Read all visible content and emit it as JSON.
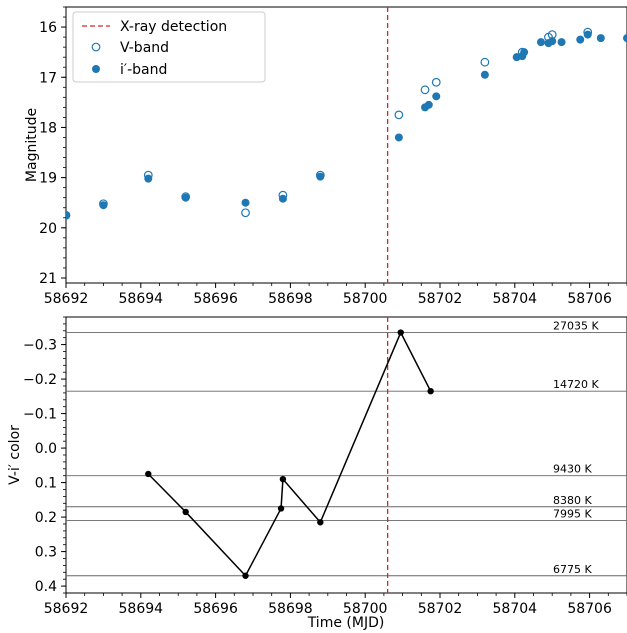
{
  "chart_data": [
    {
      "type": "scatter",
      "title": "",
      "xlabel": "",
      "ylabel": "Magnitude",
      "xlim": [
        58692,
        58707
      ],
      "ylim": [
        21.1,
        15.6
      ],
      "y_inverted": true,
      "xticks": [
        58692,
        58694,
        58696,
        58698,
        58700,
        58702,
        58704,
        58706
      ],
      "yticks": [
        16,
        17,
        18,
        19,
        20,
        21
      ],
      "legend": {
        "placement": "upper-left",
        "entries": [
          "X-ray detection",
          "V-band",
          "i′-band"
        ]
      },
      "vline": {
        "x": 58700.6,
        "label": "X-ray detection",
        "color": "#d62728",
        "style": "dashed"
      },
      "series": [
        {
          "name": "V-band",
          "marker": "open-circle",
          "color": "#1f77b4",
          "points": [
            [
              58692,
              19.75
            ],
            [
              58693,
              19.52
            ],
            [
              58694.2,
              18.95
            ],
            [
              58695.2,
              19.38
            ],
            [
              58696.8,
              19.7
            ],
            [
              58697.8,
              19.35
            ],
            [
              58698.8,
              18.95
            ],
            [
              58700.9,
              17.75
            ],
            [
              58701.6,
              17.25
            ],
            [
              58701.9,
              17.1
            ],
            [
              58703.2,
              16.7
            ],
            [
              58704.2,
              16.5
            ],
            [
              58704.9,
              16.2
            ],
            [
              58705,
              16.15
            ],
            [
              58705.95,
              16.1
            ]
          ]
        },
        {
          "name": "i′-band",
          "marker": "filled-circle",
          "color": "#1f77b4",
          "points": [
            [
              58692,
              19.75
            ],
            [
              58693,
              19.55
            ],
            [
              58694.2,
              19.02
            ],
            [
              58695.2,
              19.4
            ],
            [
              58696.8,
              19.5
            ],
            [
              58697.8,
              19.42
            ],
            [
              58698.8,
              18.98
            ],
            [
              58700.9,
              18.2
            ],
            [
              58701.6,
              17.6
            ],
            [
              58701.7,
              17.55
            ],
            [
              58701.9,
              17.38
            ],
            [
              58703.2,
              16.95
            ],
            [
              58704.05,
              16.6
            ],
            [
              58704.2,
              16.58
            ],
            [
              58704.25,
              16.5
            ],
            [
              58704.7,
              16.3
            ],
            [
              58704.9,
              16.32
            ],
            [
              58705,
              16.28
            ],
            [
              58705.25,
              16.3
            ],
            [
              58705.75,
              16.25
            ],
            [
              58705.95,
              16.15
            ],
            [
              58706.3,
              16.22
            ],
            [
              58707,
              16.22
            ]
          ]
        }
      ]
    },
    {
      "type": "line",
      "title": "",
      "xlabel": "Time (MJD)",
      "ylabel": "V-i′ color",
      "xlim": [
        58692,
        58707
      ],
      "ylim": [
        0.42,
        -0.38
      ],
      "y_inverted": true,
      "xticks": [
        58692,
        58694,
        58696,
        58698,
        58700,
        58702,
        58704,
        58706
      ],
      "yticks": [
        -0.3,
        -0.2,
        -0.1,
        0.0,
        0.1,
        0.2,
        0.3,
        0.4
      ],
      "ytick_labels": [
        "−0.3",
        "−0.2",
        "−0.1",
        "0.0",
        "0.1",
        "0.2",
        "0.3",
        "0.4"
      ],
      "vline": {
        "x": 58700.6,
        "color": "#d62728",
        "style": "dashed"
      },
      "series": [
        {
          "color": "#000000",
          "points": [
            [
              58694.2,
              0.075
            ],
            [
              58695.2,
              0.185
            ],
            [
              58696.8,
              0.37
            ],
            [
              58697.75,
              0.175
            ],
            [
              58697.8,
              0.09
            ],
            [
              58698.8,
              0.215
            ],
            [
              58700.95,
              -0.335
            ],
            [
              58701.75,
              -0.165
            ]
          ]
        }
      ],
      "hlines": [
        {
          "y": -0.335,
          "label": "27035 K"
        },
        {
          "y": -0.165,
          "label": "14720 K"
        },
        {
          "y": 0.08,
          "label": "9430 K"
        },
        {
          "y": 0.17,
          "label": "8380 K"
        },
        {
          "y": 0.21,
          "label": "7995 K"
        },
        {
          "y": 0.37,
          "label": "6775 K"
        }
      ]
    }
  ]
}
